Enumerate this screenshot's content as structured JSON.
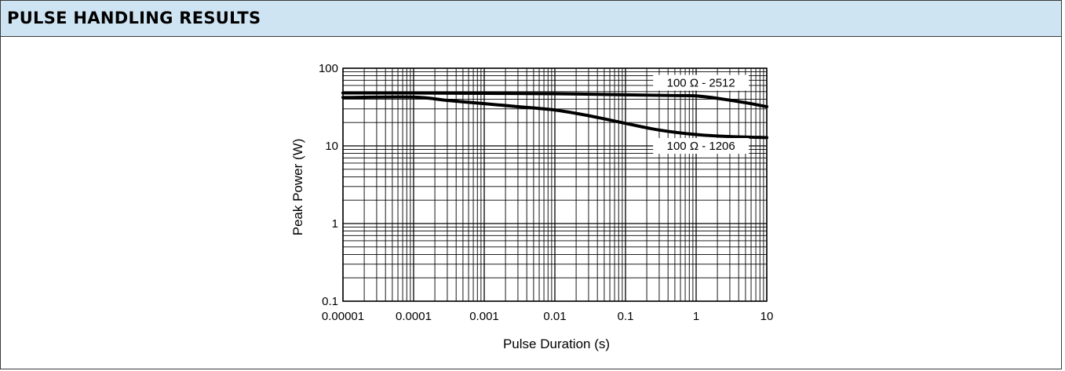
{
  "header": {
    "title": "PULSE HANDLING RESULTS"
  },
  "colors": {
    "header_bg": "#cfe4f3",
    "line": "#000000",
    "grid": "#000000"
  },
  "chart_data": {
    "type": "line",
    "title": "",
    "xlabel": "Pulse Duration (s)",
    "ylabel": "Peak Power (W)",
    "xscale": "log",
    "yscale": "log",
    "xlim": [
      1e-05,
      10
    ],
    "ylim": [
      0.1,
      100
    ],
    "grid": true,
    "x_tick_labels": [
      "0.00001",
      "0.0001",
      "0.001",
      "0.01",
      "0.1",
      "1",
      "10"
    ],
    "y_tick_labels": [
      "0.1",
      "1",
      "10",
      "100"
    ],
    "series": [
      {
        "name": "100 Ω - 2512",
        "x": [
          1e-05,
          0.0001,
          0.001,
          0.01,
          0.1,
          0.5,
          1,
          2,
          5,
          10
        ],
        "y": [
          48,
          48,
          47.5,
          47,
          45.5,
          44.5,
          44,
          41,
          36,
          32
        ]
      },
      {
        "name": "100 Ω - 1206",
        "x": [
          1e-05,
          0.0001,
          0.0003,
          0.001,
          0.003,
          0.01,
          0.03,
          0.1,
          0.3,
          1,
          3,
          10
        ],
        "y": [
          42,
          42.5,
          38.5,
          35,
          32,
          29,
          24.5,
          19.5,
          16,
          14,
          13.2,
          12.8
        ]
      }
    ]
  }
}
